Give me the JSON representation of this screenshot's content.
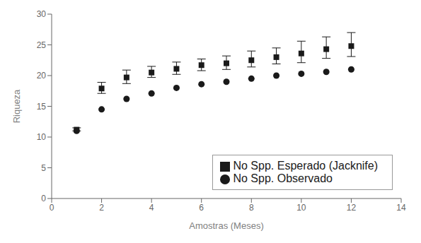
{
  "chart_data": {
    "type": "scatter",
    "xlabel": "Amostras (Meses)",
    "ylabel": "Riqueza",
    "x": [
      1,
      2,
      3,
      4,
      5,
      6,
      7,
      8,
      9,
      10,
      11,
      12
    ],
    "series": [
      {
        "name": "No Spp. Observado",
        "color": "#1a1a1a",
        "marker": "circle",
        "values": [
          11.0,
          14.5,
          16.2,
          17.1,
          18.0,
          18.6,
          19.0,
          19.5,
          20.0,
          20.3,
          20.6,
          21.0
        ]
      },
      {
        "name": "No Spp. Esperado (Jacknife)",
        "color": "#1a1a1a",
        "marker": "square",
        "values": [
          11.2,
          17.9,
          19.7,
          20.5,
          21.1,
          21.7,
          22.0,
          22.5,
          23.0,
          23.6,
          24.3,
          24.8
        ],
        "error_upper": [
          0.3,
          1.0,
          1.2,
          1.0,
          1.1,
          1.0,
          1.2,
          1.5,
          1.5,
          2.0,
          2.0,
          2.2
        ],
        "error_lower": [
          0.2,
          0.8,
          1.0,
          0.8,
          0.9,
          0.9,
          1.0,
          1.1,
          1.1,
          1.5,
          1.5,
          1.7
        ]
      }
    ],
    "xlim": [
      0,
      14
    ],
    "ylim": [
      0,
      30
    ],
    "xticks": [
      0,
      2,
      4,
      6,
      8,
      10,
      12,
      14
    ],
    "yticks": [
      0,
      5,
      10,
      15,
      20,
      25,
      30
    ],
    "legend": "lower right",
    "grid": false
  }
}
